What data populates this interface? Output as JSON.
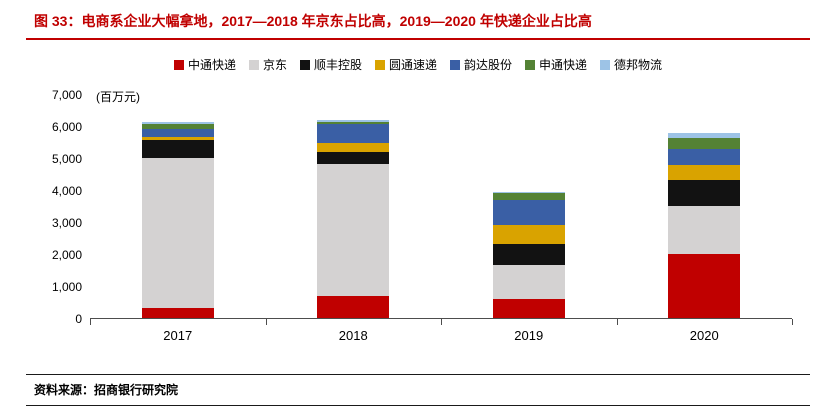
{
  "header": {
    "title": "图 33：电商系企业大幅拿地，2017—2018 年京东占比高，2019—2020 年快递企业占比高"
  },
  "footer": {
    "source": "资料来源：招商银行研究院"
  },
  "colors": {
    "title_red": "#C00000",
    "axis_line": "#4d4d4d"
  },
  "chart_data": {
    "type": "bar",
    "stacked": true,
    "title": "",
    "unit_label": "(百万元)",
    "categories": [
      "2017",
      "2018",
      "2019",
      "2020"
    ],
    "series": [
      {
        "name": "中通快递",
        "color": "#C00000",
        "values": [
          300,
          700,
          600,
          2000
        ]
      },
      {
        "name": "京东",
        "color": "#D4D2D2",
        "values": [
          4700,
          4100,
          1050,
          1500
        ]
      },
      {
        "name": "顺丰控股",
        "color": "#121212",
        "values": [
          550,
          380,
          650,
          800
        ]
      },
      {
        "name": "圆通速递",
        "color": "#D9A300",
        "values": [
          100,
          280,
          600,
          480
        ]
      },
      {
        "name": "韵达股份",
        "color": "#3A5FA5",
        "values": [
          250,
          600,
          800,
          500
        ]
      },
      {
        "name": "申通快递",
        "color": "#548235",
        "values": [
          150,
          60,
          200,
          350
        ]
      },
      {
        "name": "德邦物流",
        "color": "#9DC3E6",
        "values": [
          70,
          60,
          30,
          150
        ]
      }
    ],
    "ylim": [
      0,
      7000
    ],
    "yticks": [
      0,
      1000,
      2000,
      3000,
      4000,
      5000,
      6000,
      7000
    ],
    "grid": false,
    "legend_position": "top"
  }
}
